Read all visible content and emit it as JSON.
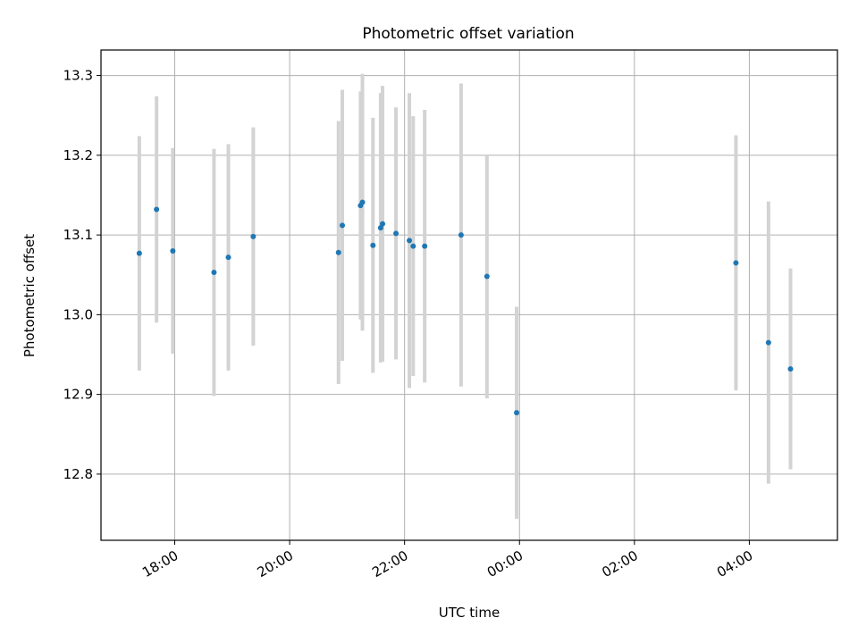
{
  "chart_data": {
    "type": "scatter",
    "title": "Photometric offset variation",
    "xlabel": "UTC time",
    "ylabel": "Photometric offset",
    "x_ticks": [
      "18:00",
      "20:00",
      "22:00",
      "00:00",
      "02:00",
      "04:00"
    ],
    "y_ticks": [
      "12.8",
      "12.9",
      "13.0",
      "13.1",
      "13.2",
      "13.3"
    ],
    "xlim": [
      "2000-01-01T16:43",
      "2000-01-02T05:32"
    ],
    "ylim": [
      12.717,
      13.332
    ],
    "grid": true,
    "colors": {
      "marker": "#1f77b4",
      "errorbar": "#d3d3d3",
      "grid": "#b0b0b0"
    },
    "series": [
      {
        "points": [
          {
            "x": "2000-01-01T17:23",
            "y": 13.077,
            "err": 0.147
          },
          {
            "x": "2000-01-01T17:41",
            "y": 13.132,
            "err": 0.142
          },
          {
            "x": "2000-01-01T17:58",
            "y": 13.08,
            "err": 0.129
          },
          {
            "x": "2000-01-01T18:41",
            "y": 13.053,
            "err": 0.155
          },
          {
            "x": "2000-01-01T18:56",
            "y": 13.072,
            "err": 0.142
          },
          {
            "x": "2000-01-01T19:22",
            "y": 13.098,
            "err": 0.137
          },
          {
            "x": "2000-01-01T20:51",
            "y": 13.078,
            "err": 0.165
          },
          {
            "x": "2000-01-01T20:55",
            "y": 13.112,
            "err": 0.17
          },
          {
            "x": "2000-01-01T21:14",
            "y": 13.137,
            "err": 0.143
          },
          {
            "x": "2000-01-01T21:16",
            "y": 13.141,
            "err": 0.161
          },
          {
            "x": "2000-01-01T21:27",
            "y": 13.087,
            "err": 0.16
          },
          {
            "x": "2000-01-01T21:35",
            "y": 13.109,
            "err": 0.169
          },
          {
            "x": "2000-01-01T21:37",
            "y": 13.114,
            "err": 0.173
          },
          {
            "x": "2000-01-01T21:51",
            "y": 13.102,
            "err": 0.158
          },
          {
            "x": "2000-01-01T22:05",
            "y": 13.093,
            "err": 0.185
          },
          {
            "x": "2000-01-01T22:09",
            "y": 13.086,
            "err": 0.163
          },
          {
            "x": "2000-01-01T22:21",
            "y": 13.086,
            "err": 0.171
          },
          {
            "x": "2000-01-01T22:59",
            "y": 13.1,
            "err": 0.19
          },
          {
            "x": "2000-01-01T23:26",
            "y": 13.048,
            "err": 0.153
          },
          {
            "x": "2000-01-01T23:57",
            "y": 12.877,
            "err": 0.133
          },
          {
            "x": "2000-01-02T03:46",
            "y": 13.065,
            "err": 0.16
          },
          {
            "x": "2000-01-02T04:20",
            "y": 12.965,
            "err": 0.177
          },
          {
            "x": "2000-01-02T04:43",
            "y": 12.932,
            "err": 0.126
          }
        ]
      }
    ]
  }
}
